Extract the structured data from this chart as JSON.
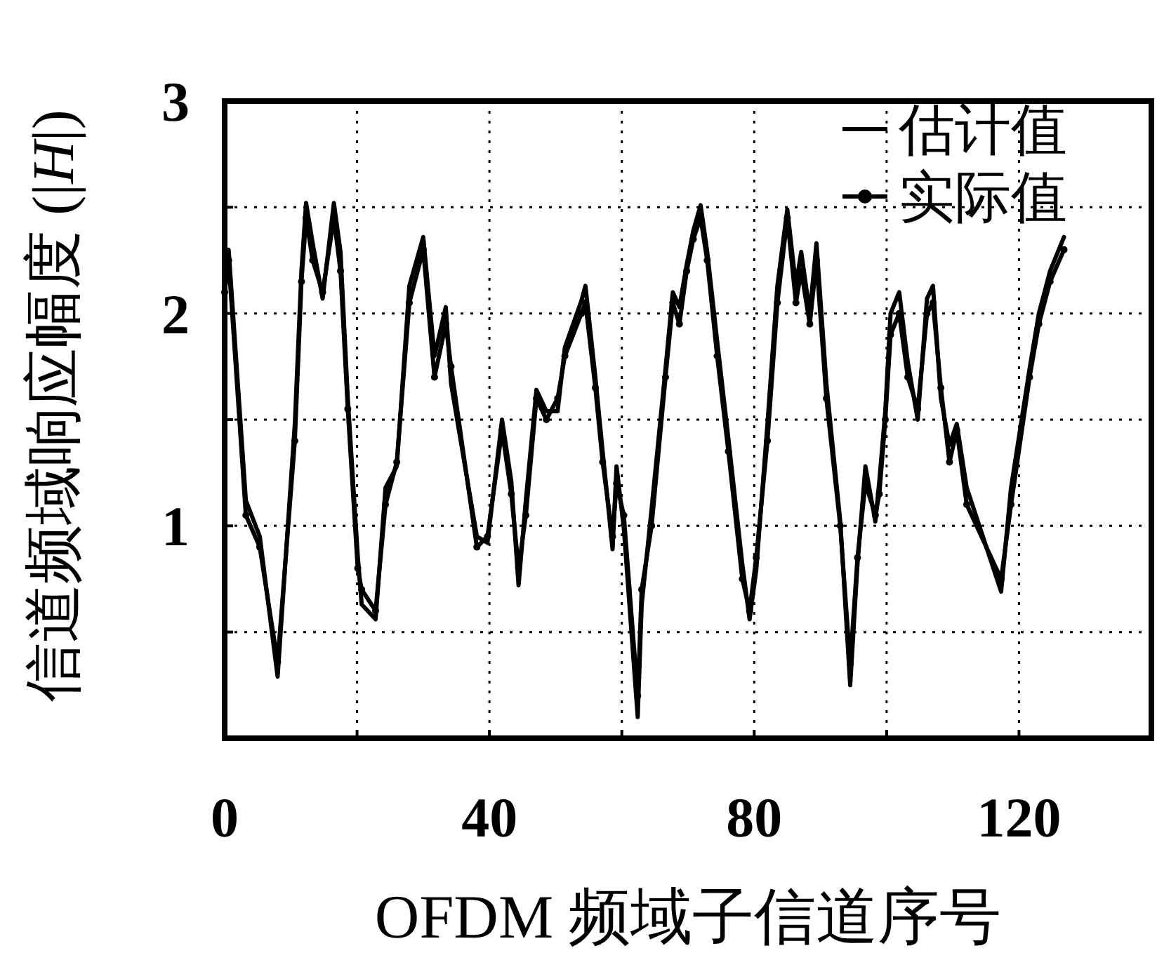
{
  "chart_data": {
    "type": "line",
    "xlabel": "OFDM 频域子信道序号",
    "ylabel": "信道频域响应幅度 (|*H*|)",
    "xlim": [
      0,
      140
    ],
    "ylim": [
      0,
      3
    ],
    "xticks": [
      0,
      {
        "value": 20,
        "label": null
      },
      40,
      {
        "value": 60,
        "label": null
      },
      80,
      {
        "value": 100,
        "label": null
      },
      120
    ],
    "yticks": [
      {
        "value": 0,
        "label": null
      },
      {
        "value": 0.5,
        "label": null
      },
      1,
      {
        "value": 1.5,
        "label": null
      },
      2,
      {
        "value": 2.5,
        "label": null
      },
      3
    ],
    "grid": true,
    "legend": "top right",
    "line_style": "solid",
    "series": [
      {
        "name": "估计值",
        "color": "#000000",
        "marker": "none",
        "x": [
          0,
          0.6,
          3.2,
          5.3,
          8.0,
          10.6,
          11.6,
          12.3,
          13.3,
          14.8,
          16.5,
          17.5,
          18.6,
          20.1,
          20.7,
          22.8,
          24.3,
          26.0,
          27.9,
          30.0,
          31.7,
          33.4,
          34.2,
          38.1,
          39.7,
          41.9,
          43.3,
          44.4,
          45.5,
          47.1,
          48.6,
          50.3,
          51.4,
          53.9,
          54.5,
          56.0,
          57.1,
          58.6,
          59.2,
          60.3,
          62.4,
          63.0,
          64.5,
          66.6,
          67.7,
          68.7,
          69.8,
          70.8,
          71.9,
          72.9,
          74.4,
          76.1,
          78.2,
          79.3,
          80.3,
          82.0,
          83.5,
          85.0,
          86.3,
          87.1,
          88.4,
          89.4,
          90.9,
          93.0,
          94.5,
          95.6,
          96.8,
          98.3,
          98.9,
          99.8,
          100.6,
          101.9,
          103.2,
          104.7,
          106.1,
          107.0,
          108.2,
          109.5,
          110.6,
          112.1,
          117.3,
          118.8,
          121.6,
          123.0,
          124.7,
          126.8
        ],
        "values": [
          2.2,
          2.3,
          1.12,
          0.95,
          0.29,
          1.48,
          2.2,
          2.52,
          2.33,
          2.07,
          2.52,
          2.29,
          1.6,
          0.86,
          0.63,
          0.56,
          1.18,
          1.28,
          2.13,
          2.36,
          1.8,
          2.03,
          1.67,
          0.95,
          0.92,
          1.5,
          1.21,
          0.72,
          1.12,
          1.64,
          1.54,
          1.54,
          1.84,
          2.06,
          2.13,
          1.7,
          1.35,
          0.89,
          1.28,
          0.99,
          0.1,
          0.63,
          1.08,
          1.74,
          2.1,
          2.03,
          2.23,
          2.39,
          2.51,
          2.29,
          1.87,
          1.41,
          0.82,
          0.56,
          0.79,
          1.48,
          2.13,
          2.49,
          2.13,
          2.29,
          2.0,
          2.33,
          1.67,
          1.02,
          0.25,
          0.82,
          1.28,
          1.02,
          1.21,
          1.54,
          2.0,
          2.1,
          1.77,
          1.5,
          2.07,
          2.13,
          1.6,
          1.38,
          1.48,
          1.18,
          0.69,
          1.18,
          1.74,
          2.0,
          2.2,
          2.36
        ]
      },
      {
        "name": "实际值",
        "color": "#000000",
        "marker": "circle",
        "x": [
          0,
          0.6,
          3.2,
          5.3,
          8.0,
          10.6,
          11.6,
          12.3,
          13.3,
          14.8,
          16.5,
          17.5,
          18.6,
          20.1,
          20.7,
          22.8,
          24.3,
          26.0,
          27.9,
          30.0,
          31.7,
          33.4,
          34.2,
          38.1,
          39.7,
          41.9,
          43.3,
          44.4,
          45.5,
          47.1,
          48.6,
          50.3,
          51.4,
          53.9,
          54.5,
          56.0,
          57.1,
          58.6,
          59.2,
          60.3,
          62.4,
          63.0,
          64.5,
          66.6,
          67.7,
          68.7,
          69.8,
          70.8,
          71.9,
          72.9,
          74.4,
          76.1,
          78.2,
          79.3,
          80.3,
          82.0,
          83.5,
          85.0,
          86.3,
          87.1,
          88.4,
          89.4,
          90.9,
          93.0,
          94.5,
          95.6,
          96.8,
          98.3,
          98.9,
          99.8,
          100.6,
          101.9,
          103.2,
          104.7,
          106.1,
          107.0,
          108.2,
          109.5,
          110.6,
          112.1,
          117.3,
          118.8,
          121.6,
          123.0,
          124.7,
          126.8
        ],
        "values": [
          2.1,
          2.25,
          1.05,
          0.9,
          0.36,
          1.4,
          2.15,
          2.45,
          2.25,
          2.1,
          2.45,
          2.2,
          1.55,
          0.8,
          0.7,
          0.6,
          1.1,
          1.3,
          2.05,
          2.3,
          1.7,
          1.95,
          1.75,
          0.9,
          0.95,
          1.45,
          1.15,
          0.8,
          1.05,
          1.6,
          1.5,
          1.6,
          1.8,
          2.0,
          2.05,
          1.65,
          1.3,
          0.95,
          1.2,
          1.05,
          0.2,
          0.7,
          1.0,
          1.7,
          2.05,
          1.95,
          2.2,
          2.35,
          2.45,
          2.25,
          1.8,
          1.35,
          0.75,
          0.6,
          0.85,
          1.4,
          2.05,
          2.45,
          2.05,
          2.2,
          1.95,
          2.25,
          1.6,
          1.0,
          0.35,
          0.85,
          1.2,
          1.05,
          1.15,
          1.5,
          1.9,
          2.0,
          1.7,
          1.55,
          2.0,
          2.05,
          1.65,
          1.3,
          1.45,
          1.1,
          0.75,
          1.1,
          1.7,
          1.95,
          2.15,
          2.3
        ]
      }
    ]
  }
}
